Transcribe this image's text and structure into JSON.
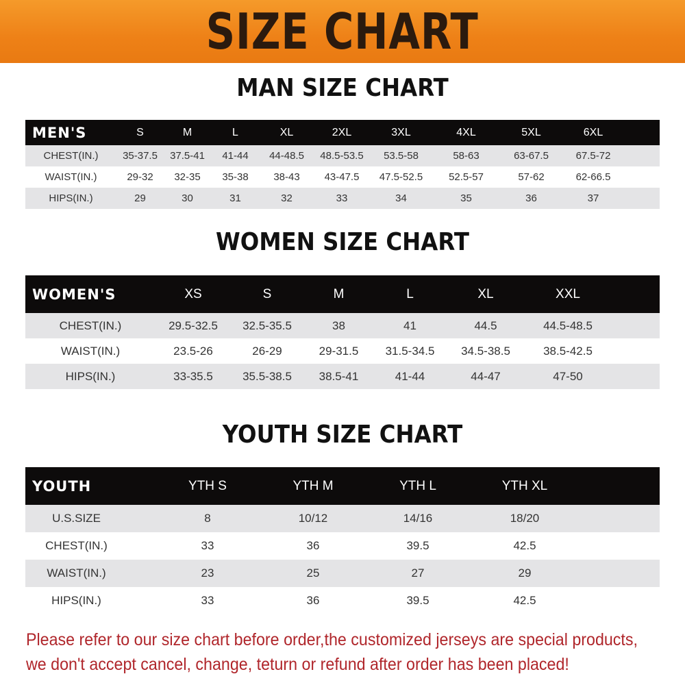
{
  "banner": {
    "title": "SIZE CHART",
    "color": "#ee8117"
  },
  "men": {
    "title": "MAN SIZE CHART",
    "header": [
      "MEN'S",
      "S",
      "M",
      "L",
      "XL",
      "2XL",
      "3XL",
      "4XL",
      "5XL",
      "6XL"
    ],
    "rows": [
      [
        "CHEST(IN.)",
        "35-37.5",
        "37.5-41",
        "41-44",
        "44-48.5",
        "48.5-53.5",
        "53.5-58",
        "58-63",
        "63-67.5",
        "67.5-72"
      ],
      [
        "WAIST(IN.)",
        "29-32",
        "32-35",
        "35-38",
        "38-43",
        "43-47.5",
        "47.5-52.5",
        "52.5-57",
        "57-62",
        "62-66.5"
      ],
      [
        "HIPS(IN.)",
        "29",
        "30",
        "31",
        "32",
        "33",
        "34",
        "35",
        "36",
        "37"
      ]
    ]
  },
  "women": {
    "title": "WOMEN SIZE CHART",
    "header": [
      "WOMEN'S",
      "XS",
      "S",
      "M",
      "L",
      "XL",
      "XXL"
    ],
    "rows": [
      [
        "CHEST(IN.)",
        "29.5-32.5",
        "32.5-35.5",
        "38",
        "41",
        "44.5",
        "44.5-48.5"
      ],
      [
        "WAIST(IN.)",
        "23.5-26",
        "26-29",
        "29-31.5",
        "31.5-34.5",
        "34.5-38.5",
        "38.5-42.5"
      ],
      [
        "HIPS(IN.)",
        "33-35.5",
        "35.5-38.5",
        "38.5-41",
        "41-44",
        "44-47",
        "47-50"
      ]
    ]
  },
  "youth": {
    "title": "YOUTH SIZE CHART",
    "header": [
      "YOUTH",
      "YTH S",
      "YTH M",
      "YTH L",
      "YTH XL"
    ],
    "rows": [
      [
        "U.S.SIZE",
        "8",
        "10/12",
        "14/16",
        "18/20"
      ],
      [
        "CHEST(IN.)",
        "33",
        "36",
        "39.5",
        "42.5"
      ],
      [
        "WAIST(IN.)",
        "23",
        "25",
        "27",
        "29"
      ],
      [
        "HIPS(IN.)",
        "33",
        "36",
        "39.5",
        "42.5"
      ]
    ]
  },
  "notice": {
    "line1": "Please refer to our size chart before order,the customized jerseys are special products,",
    "line2": "we don't accept cancel, change, teturn or refund after order has been placed!",
    "color": "#b0262b"
  }
}
